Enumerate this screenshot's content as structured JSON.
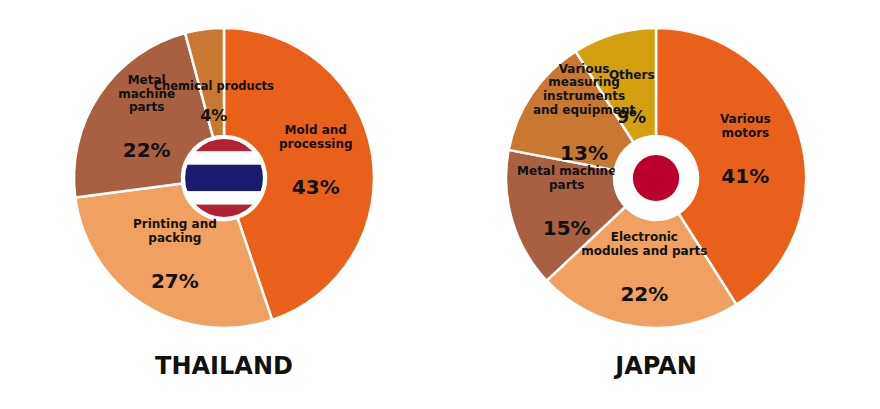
{
  "chart_data": [
    {
      "type": "pie",
      "title": "THAILAND",
      "categories": [
        "Mold and\nprocessing",
        "Printing and\npacking",
        "Metal\nmachine\nparts",
        "Chemical products"
      ],
      "values": [
        43,
        27,
        22,
        4
      ],
      "value_labels": [
        "43%",
        "27%",
        "22%",
        "4%"
      ],
      "colors": [
        "#E8601A",
        "#F0A060",
        "#A86040",
        "#C87830"
      ],
      "data_labels": true
    },
    {
      "type": "pie",
      "title": "JAPAN",
      "categories": [
        "Various\nmotors",
        "Electronic\nmodules and parts",
        "Metal machine\nparts",
        "Various\nmeasuring\ninstruments\nand equipment",
        "Others"
      ],
      "values": [
        41,
        22,
        15,
        13,
        9
      ],
      "value_labels": [
        "41%",
        "22%",
        "15%",
        "13%",
        "9%"
      ],
      "colors": [
        "#E8601A",
        "#F0A060",
        "#A86040",
        "#C87830",
        "#D4A010"
      ],
      "data_labels": true
    }
  ]
}
